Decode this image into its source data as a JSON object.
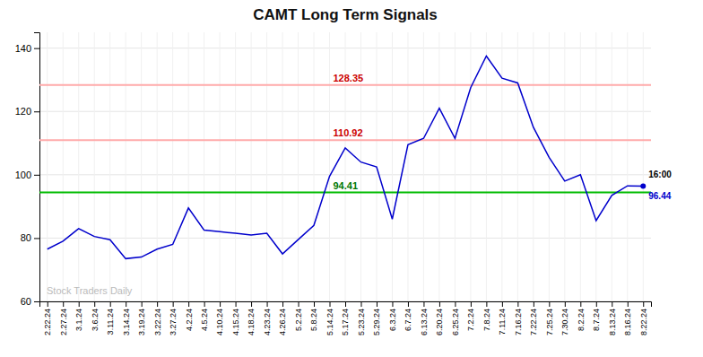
{
  "chart_data": {
    "type": "line",
    "title": "CAMT Long Term Signals",
    "categories": [
      "2.22.24",
      "2.27.24",
      "3.1.24",
      "3.6.24",
      "3.11.24",
      "3.14.24",
      "3.19.24",
      "3.22.24",
      "3.27.24",
      "4.2.24",
      "4.5.24",
      "4.10.24",
      "4.15.24",
      "4.18.24",
      "4.23.24",
      "4.26.24",
      "5.2.24",
      "5.8.24",
      "5.14.24",
      "5.17.24",
      "5.23.24",
      "5.29.24",
      "6.3.24",
      "6.7.24",
      "6.13.24",
      "6.20.24",
      "6.25.24",
      "7.2.24",
      "7.8.24",
      "7.11.24",
      "7.16.24",
      "7.22.24",
      "7.25.24",
      "7.30.24",
      "8.2.24",
      "8.7.24",
      "8.13.24",
      "8.16.24",
      "8.22.24"
    ],
    "values": [
      76.5,
      79.0,
      83.0,
      80.5,
      79.5,
      73.5,
      74.0,
      76.5,
      78.0,
      89.5,
      82.5,
      82.0,
      81.5,
      81.0,
      81.5,
      75.0,
      79.5,
      84.0,
      99.5,
      108.5,
      104.0,
      102.5,
      86.0,
      109.5,
      111.5,
      121.0,
      111.5,
      127.5,
      137.5,
      130.5,
      129.0,
      115.0,
      105.5,
      98.0,
      100.0,
      85.5,
      93.5,
      96.5,
      96.44
    ],
    "color": "#0000cc",
    "hlines": [
      {
        "value": 128.35,
        "label": "128.35",
        "color": "#ffaaaa",
        "label_color": "#cc0000"
      },
      {
        "value": 110.92,
        "label": "110.92",
        "color": "#ffaaaa",
        "label_color": "#cc0000"
      },
      {
        "value": 94.41,
        "label": "94.41",
        "color": "#00bb00",
        "label_color": "#007700"
      }
    ],
    "annotations": [
      {
        "text": "16:00",
        "color": "#000000"
      },
      {
        "text": "96.44",
        "color": "#0000cc"
      }
    ],
    "watermark": "Stock Traders Daily",
    "watermark_color": "#bbbbbb",
    "ylim": [
      60,
      145
    ],
    "yticks": [
      60,
      80,
      100,
      120,
      140
    ],
    "grid": true
  }
}
